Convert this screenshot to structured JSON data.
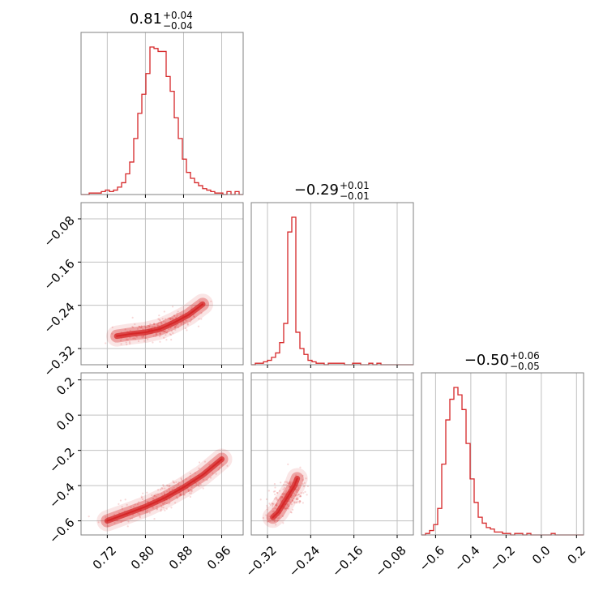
{
  "chart_data": {
    "type": "corner",
    "color": "#d62728",
    "parameters": [
      {
        "title": {
          "main": "0.81",
          "plus": "+0.04",
          "minus": "−0.04"
        },
        "ticks": [
          0.72,
          0.8,
          0.88,
          0.96
        ],
        "tick_labels": [
          "0.72",
          "0.80",
          "0.88",
          "0.96"
        ],
        "range": [
          0.665,
          1.005
        ],
        "histogram": {
          "bin_edges_range": [
            0.665,
            1.005
          ],
          "counts": [
            0,
            0,
            1,
            1,
            1,
            2,
            3,
            2,
            3,
            5,
            8,
            14,
            22,
            38,
            55,
            68,
            82,
            100,
            99,
            97,
            97,
            80,
            70,
            52,
            38,
            24,
            15,
            11,
            8,
            6,
            4,
            3,
            2,
            1,
            1,
            0,
            2,
            0,
            2,
            0
          ]
        }
      },
      {
        "title": {
          "main": "−0.29",
          "plus": "+0.01",
          "minus": "−0.01"
        },
        "ticks": [
          -0.32,
          -0.24,
          -0.16,
          -0.08
        ],
        "tick_labels": [
          "−0.32",
          "−0.24",
          "−0.16",
          "−0.08"
        ],
        "range": [
          -0.35,
          -0.05
        ],
        "histogram": {
          "bin_edges_range": [
            -0.35,
            -0.05
          ],
          "counts": [
            0,
            1,
            1,
            2,
            3,
            5,
            8,
            15,
            28,
            90,
            100,
            22,
            11,
            7,
            3,
            2,
            1,
            1,
            0,
            1,
            1,
            1,
            1,
            0,
            0,
            1,
            1,
            0,
            0,
            1,
            0,
            1,
            0,
            0,
            0,
            0,
            0,
            0,
            0,
            0
          ]
        }
      },
      {
        "title": {
          "main": "−0.50",
          "plus": "+0.06",
          "minus": "−0.05"
        },
        "ticks": [
          -0.6,
          -0.4,
          -0.2,
          0.0,
          0.2
        ],
        "tick_labels": [
          "−0.6",
          "−0.4",
          "−0.2",
          "0.0",
          "0.2"
        ],
        "range": [
          -0.68,
          0.24
        ],
        "histogram": {
          "bin_edges_range": [
            -0.68,
            0.24
          ],
          "counts": [
            0,
            1,
            3,
            7,
            18,
            48,
            78,
            92,
            100,
            95,
            85,
            62,
            38,
            22,
            12,
            8,
            5,
            4,
            2,
            2,
            1,
            1,
            0,
            1,
            1,
            0,
            1,
            0,
            0,
            0,
            0,
            0,
            1,
            0,
            0,
            0,
            0,
            0,
            0,
            0
          ]
        }
      }
    ],
    "pairs": [
      {
        "x_param": 0,
        "y_param": 1,
        "y_tick_labels": [
          "−0.08",
          "−0.16",
          "−0.24",
          "−0.32"
        ],
        "ridge": [
          [
            0.74,
            -0.297
          ],
          [
            0.77,
            -0.293
          ],
          [
            0.8,
            -0.29
          ],
          [
            0.83,
            -0.284
          ],
          [
            0.86,
            -0.272
          ],
          [
            0.89,
            -0.258
          ],
          [
            0.92,
            -0.238
          ]
        ],
        "scatter_extent": {
          "x": [
            0.68,
            1.0
          ],
          "y": [
            -0.34,
            -0.08
          ]
        }
      },
      {
        "x_param": 0,
        "y_param": 2,
        "y_tick_labels": [
          "−0.6",
          "−0.4",
          "−0.2",
          "0.0",
          "0.2"
        ],
        "ridge": [
          [
            0.72,
            -0.6
          ],
          [
            0.76,
            -0.56
          ],
          [
            0.8,
            -0.52
          ],
          [
            0.84,
            -0.47
          ],
          [
            0.88,
            -0.41
          ],
          [
            0.92,
            -0.34
          ],
          [
            0.96,
            -0.25
          ]
        ],
        "scatter_extent": {
          "x": [
            0.68,
            1.0
          ],
          "y": [
            -0.68,
            0.24
          ]
        }
      },
      {
        "x_param": 1,
        "y_param": 2,
        "ridge": [
          [
            -0.31,
            -0.58
          ],
          [
            -0.3,
            -0.55
          ],
          [
            -0.29,
            -0.5
          ],
          [
            -0.28,
            -0.45
          ],
          [
            -0.27,
            -0.4
          ],
          [
            -0.265,
            -0.36
          ]
        ],
        "scatter_extent": {
          "x": [
            -0.35,
            -0.07
          ],
          "y": [
            -0.68,
            0.24
          ]
        }
      }
    ]
  }
}
